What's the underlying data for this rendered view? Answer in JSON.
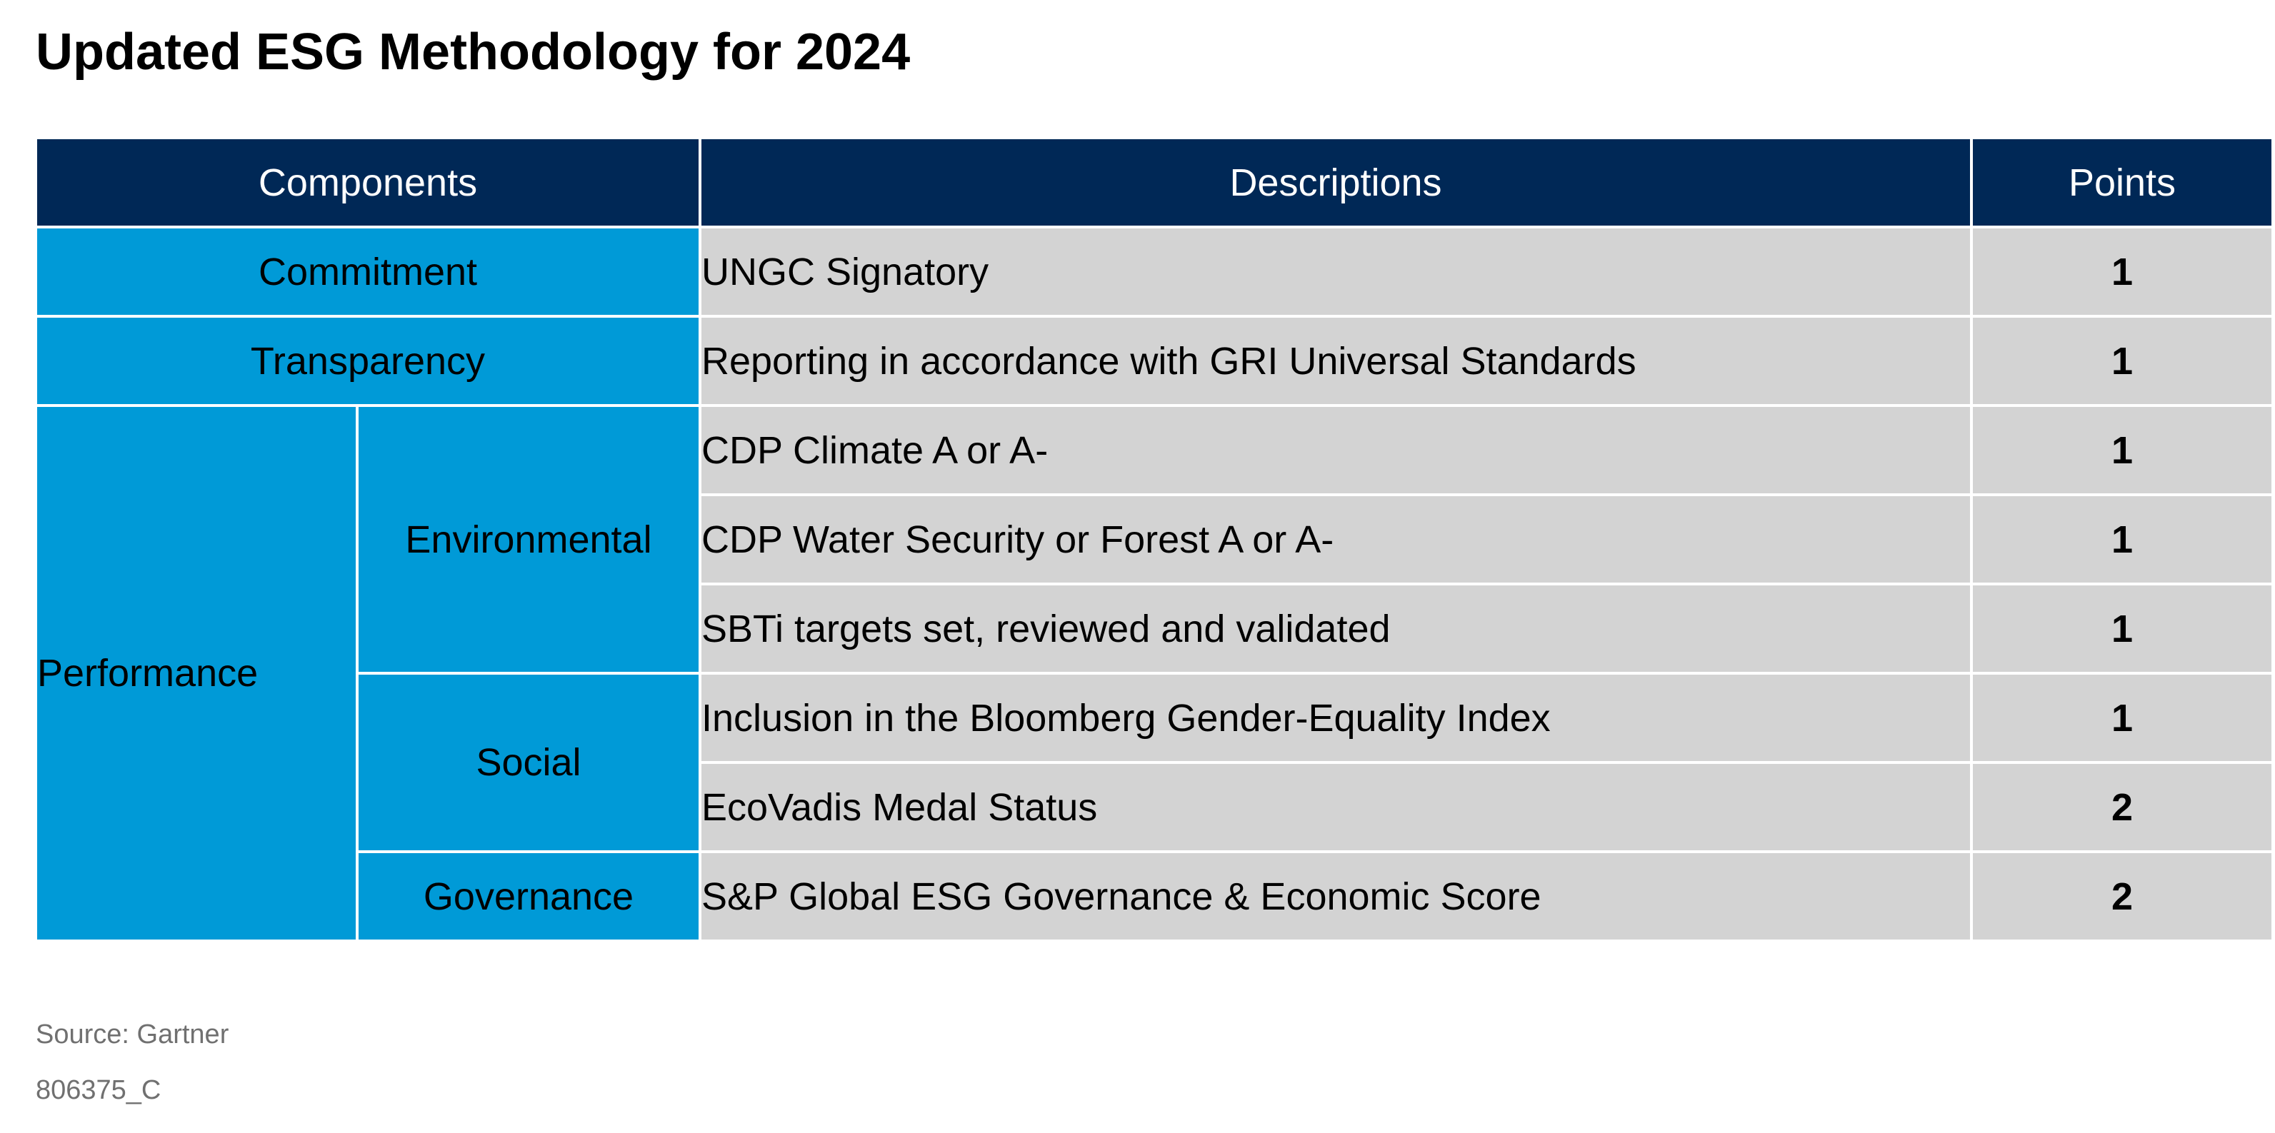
{
  "title": "Updated ESG Methodology for 2024",
  "table": {
    "headers": {
      "components": "Components",
      "descriptions": "Descriptions",
      "points": "Points"
    },
    "rows": [
      {
        "component": "Commitment",
        "description": "UNGC Signatory",
        "points": "1"
      },
      {
        "component": "Transparency",
        "description": "Reporting in accordance with GRI Universal Standards",
        "points": "1"
      },
      {
        "component": "Performance",
        "subcomponent": "Environmental",
        "description": "CDP Climate A or A-",
        "points": "1"
      },
      {
        "component": "Performance",
        "subcomponent": "Environmental",
        "description": "CDP Water Security or Forest A or A-",
        "points": "1"
      },
      {
        "component": "Performance",
        "subcomponent": "Environmental",
        "description": "SBTi targets set, reviewed and validated",
        "points": "1"
      },
      {
        "component": "Performance",
        "subcomponent": "Social",
        "description": "Inclusion in the Bloomberg Gender-Equality Index",
        "points": "1"
      },
      {
        "component": "Performance",
        "subcomponent": "Social",
        "description": "EcoVadis Medal Status",
        "points": "2"
      },
      {
        "component": "Performance",
        "subcomponent": "Governance",
        "description": "S&P Global ESG Governance & Economic Score",
        "points": "2"
      }
    ]
  },
  "footer": {
    "source": "Source: Gartner",
    "code": "806375_C"
  },
  "colors": {
    "header_bg": "#002856",
    "component_bg": "#009AD7",
    "row_bg": "#D3D3D3"
  }
}
